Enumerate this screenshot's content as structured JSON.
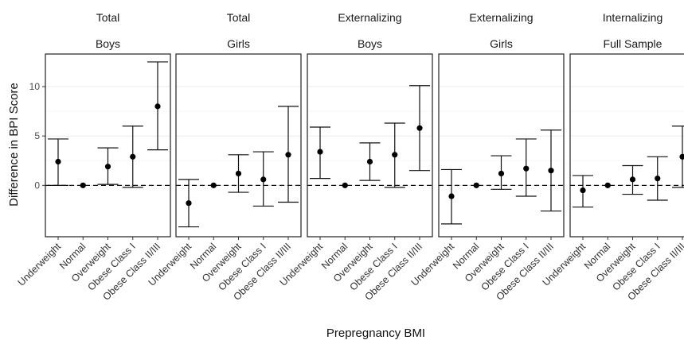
{
  "chart_data": {
    "type": "errorbar",
    "xlabel": "Prepregnancy BMI",
    "ylabel": "Difference in BPI Score",
    "categories": [
      "Underweight",
      "Normal",
      "Overweight",
      "Obese Class I",
      "Obese Class II/III"
    ],
    "ylim": [
      -5.2,
      13.3
    ],
    "yticks": [
      0,
      5,
      10
    ],
    "reference_line": 0,
    "grid": true,
    "panels": [
      {
        "strip1": "Total",
        "strip2": "Boys",
        "estimate": [
          2.4,
          0,
          1.9,
          2.9,
          8.0
        ],
        "lower": [
          0.0,
          0,
          0.1,
          -0.2,
          3.6
        ],
        "upper": [
          4.7,
          0,
          3.8,
          6.0,
          12.5
        ]
      },
      {
        "strip1": "Total",
        "strip2": "Girls",
        "estimate": [
          -1.8,
          0,
          1.2,
          0.6,
          3.1
        ],
        "lower": [
          -4.2,
          0,
          -0.7,
          -2.1,
          -1.7
        ],
        "upper": [
          0.6,
          0,
          3.1,
          3.4,
          8.0
        ]
      },
      {
        "strip1": "Externalizing",
        "strip2": "Boys",
        "estimate": [
          3.4,
          0,
          2.4,
          3.1,
          5.8
        ],
        "lower": [
          0.7,
          0,
          0.5,
          -0.2,
          1.5
        ],
        "upper": [
          5.9,
          0,
          4.3,
          6.3,
          10.1
        ]
      },
      {
        "strip1": "Externalizing",
        "strip2": "Girls",
        "estimate": [
          -1.1,
          0,
          1.2,
          1.7,
          1.5
        ],
        "lower": [
          -3.9,
          0,
          -0.4,
          -1.1,
          -2.6
        ],
        "upper": [
          1.6,
          0,
          3.0,
          4.7,
          5.6
        ]
      },
      {
        "strip1": "Internalizing",
        "strip2": "Full Sample",
        "estimate": [
          -0.5,
          0,
          0.6,
          0.7,
          2.9
        ],
        "lower": [
          -2.2,
          0,
          -0.9,
          -1.5,
          -0.2
        ],
        "upper": [
          1.0,
          0,
          2.0,
          2.9,
          6.0
        ]
      }
    ]
  }
}
